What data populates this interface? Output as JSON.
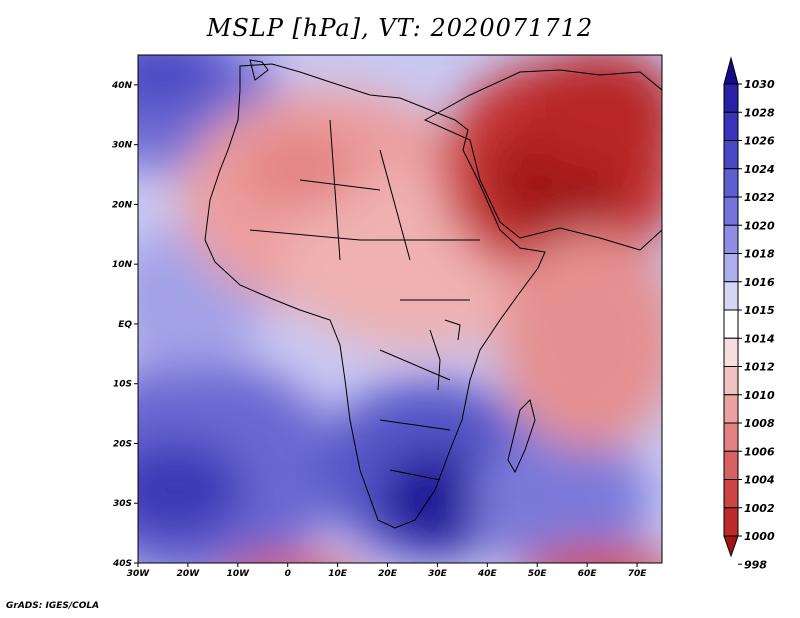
{
  "title": "MSLP [hPa], VT: 2020071712",
  "footer": "GrADS: IGES/COLA",
  "axes": {
    "x_ticks": [
      "30W",
      "20W",
      "10W",
      "0",
      "10E",
      "20E",
      "30E",
      "40E",
      "50E",
      "60E",
      "70E"
    ],
    "y_ticks": [
      "40N",
      "30N",
      "20N",
      "10N",
      "EQ",
      "10S",
      "20S",
      "30S",
      "40S"
    ],
    "lon_range": [
      -30,
      75
    ],
    "lat_range": [
      -40,
      45
    ]
  },
  "colorbar": {
    "labels": [
      "1030",
      "1028",
      "1026",
      "1024",
      "1022",
      "1020",
      "1018",
      "1016",
      "1015",
      "1014",
      "1012",
      "1010",
      "1008",
      "1006",
      "1004",
      "1002",
      "1000",
      "998"
    ],
    "colors": [
      "#160a8c",
      "#2a22a6",
      "#3a35b8",
      "#4a48c4",
      "#5f5ed0",
      "#7574da",
      "#8e8de3",
      "#aeaeec",
      "#d6d6f6",
      "#ffffff",
      "#f7dede",
      "#f1c2c2",
      "#eaa2a2",
      "#e28282",
      "#d86262",
      "#cc4444",
      "#bc2a2a",
      "#a31515"
    ]
  }
}
